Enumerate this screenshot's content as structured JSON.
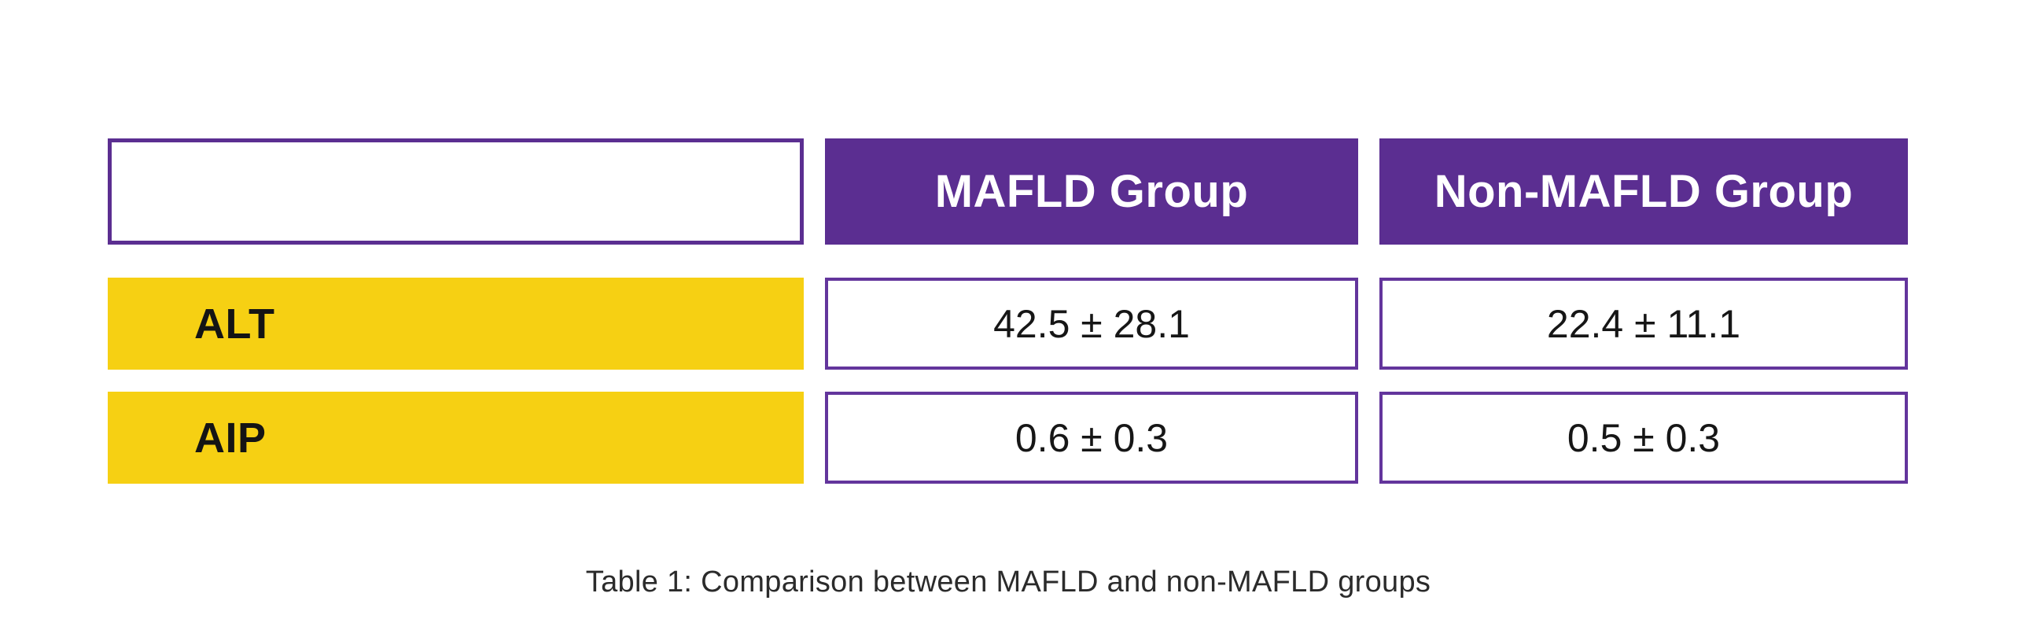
{
  "colors": {
    "purple_fill": "#5b2e91",
    "purple_border": "#63359c",
    "yellow_fill": "#f6d013",
    "header_text": "#ffffff",
    "body_text": "#161616",
    "caption_text": "#2b2b2b",
    "background": "#ffffff"
  },
  "table": {
    "columns": [
      "",
      "MAFLD Group",
      "Non-MAFLD Group"
    ],
    "rows": [
      {
        "label": "ALT",
        "mafld": "42.5 ± 28.1",
        "non_mafld": "22.4 ± 11.1"
      },
      {
        "label": "AIP",
        "mafld": "0.6 ± 0.3",
        "non_mafld": "0.5 ± 0.3"
      }
    ],
    "caption": "Table 1: Comparison between MAFLD and non-MAFLD groups"
  },
  "chart_data": {
    "type": "table",
    "title": "Table 1: Comparison between MAFLD and non-MAFLD groups",
    "columns": [
      "",
      "MAFLD Group",
      "Non-MAFLD Group"
    ],
    "categories": [
      "ALT",
      "AIP"
    ],
    "rows": [
      [
        "ALT",
        "42.5 ± 28.1",
        "22.4 ± 11.1"
      ],
      [
        "AIP",
        "0.6 ± 0.3",
        "0.5 ± 0.3"
      ]
    ],
    "series": [
      {
        "name": "MAFLD Group",
        "mean": [
          42.5,
          0.6
        ],
        "sd": [
          28.1,
          0.3
        ]
      },
      {
        "name": "Non-MAFLD Group",
        "mean": [
          22.4,
          0.5
        ],
        "sd": [
          11.1,
          0.3
        ]
      }
    ]
  }
}
